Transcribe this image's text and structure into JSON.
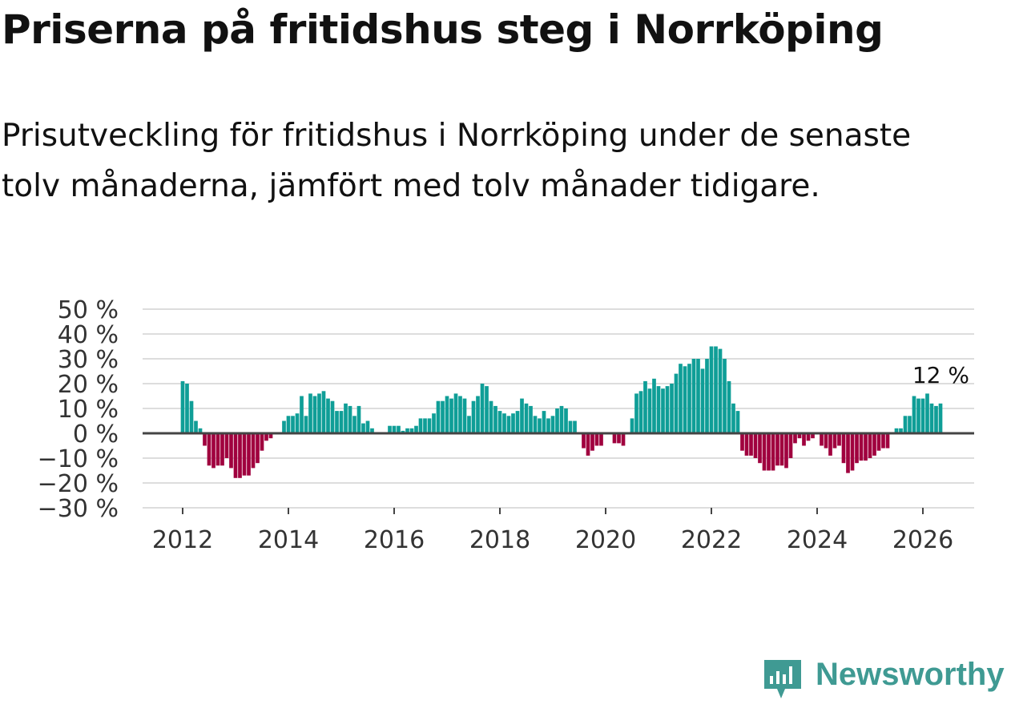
{
  "title": "Priserna på fritidshus steg i Norrköping",
  "subtitle": "Prisutveckling för fritidshus i Norrköping under de senaste tolv månaderna, jämfört med tolv månader tidigare.",
  "brand": {
    "name": "Newsworthy",
    "icon": "newsworthy-logo-icon"
  },
  "colors": {
    "positive": "#0f9e97",
    "negative": "#a0003e",
    "grid": "#dddddd",
    "zero_line": "#444444",
    "text": "#333333",
    "brand": "#3f9a93"
  },
  "chart_data": {
    "type": "bar",
    "title": "",
    "xlabel": "",
    "ylabel": "",
    "ylim": [
      -30,
      50
    ],
    "yticks": [
      50,
      40,
      30,
      20,
      10,
      0,
      -10,
      -20,
      -30
    ],
    "ytick_labels": [
      "50 %",
      "40 %",
      "30 %",
      "20 %",
      "10 %",
      "0 %",
      "−10 %",
      "−20 %",
      "−30 %"
    ],
    "xticks": [
      "2012",
      "2014",
      "2016",
      "2018",
      "2020",
      "2022",
      "2024",
      "2026"
    ],
    "x_start": "2012-01",
    "annotation": {
      "text": "12 %",
      "month": "2026-03",
      "value": 12
    },
    "values": [
      21,
      20,
      13,
      5,
      2,
      -5,
      -13,
      -14,
      -13,
      -13,
      -10,
      -14,
      -18,
      -18,
      -17,
      -17,
      -14,
      -12,
      -7,
      -3,
      -2,
      0,
      0,
      5,
      7,
      7,
      8,
      15,
      7,
      16,
      15,
      16,
      17,
      14,
      13,
      9,
      9,
      12,
      11,
      7,
      11,
      4,
      5,
      2,
      0,
      0,
      0,
      3,
      3,
      3,
      1,
      2,
      2,
      3,
      6,
      6,
      6,
      8,
      13,
      13,
      15,
      14,
      16,
      15,
      14,
      7,
      13,
      15,
      20,
      19,
      13,
      11,
      9,
      8,
      7,
      8,
      9,
      14,
      12,
      11,
      7,
      6,
      9,
      6,
      7,
      10,
      11,
      10,
      5,
      5,
      0,
      -6,
      -9,
      -7,
      -5,
      -5,
      0,
      0,
      -4,
      -4,
      -5,
      0,
      6,
      16,
      17,
      21,
      18,
      22,
      19,
      18,
      19,
      20,
      24,
      28,
      27,
      28,
      30,
      30,
      26,
      30,
      35,
      35,
      34,
      30,
      21,
      12,
      9,
      -7,
      -9,
      -9,
      -10,
      -12,
      -15,
      -15,
      -15,
      -13,
      -13,
      -14,
      -10,
      -4,
      -2,
      -5,
      -3,
      -2,
      0,
      -5,
      -6,
      -9,
      -6,
      -5,
      -12,
      -16,
      -15,
      -12,
      -11,
      -11,
      -10,
      -9,
      -7,
      -6,
      -6,
      0,
      2,
      2,
      7,
      7,
      15,
      14,
      14,
      16,
      12,
      11,
      12
    ]
  }
}
